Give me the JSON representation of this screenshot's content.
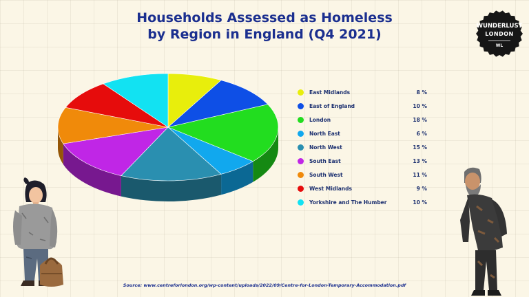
{
  "title_lines": [
    "Households Assessed as Homeless",
    "by Region in England (Q4 2021)"
  ],
  "logo": {
    "line1": "WUNDERLUST",
    "line2": "LONDON",
    "line3": "WL"
  },
  "source": "Source: www.centreforlondon.org/wp-content/uploads/2022/09/Centre-for-London-Temporary-Accommodation.pdf",
  "chart_data": {
    "type": "pie",
    "title": "Households Assessed as Homeless by Region in England (Q4 2021)",
    "unit": "%",
    "legend_position": "right",
    "labels": [
      "East Midlands",
      "East of England",
      "London",
      "North East",
      "North West",
      "South East",
      "South West",
      "West Midlands",
      "Yorkshire and The Humber"
    ],
    "values": [
      8,
      10,
      18,
      6,
      15,
      13,
      11,
      9,
      10
    ],
    "value_labels": [
      "8 %",
      "10 %",
      "18 %",
      "6 %",
      "15 %",
      "13 %",
      "11 %",
      "9 %",
      "10 %"
    ],
    "colors": [
      "#e8ee0c",
      "#0e4fe6",
      "#22dd1f",
      "#11a8ee",
      "#2a8fb0",
      "#c026e6",
      "#f08a0a",
      "#e60c0c",
      "#12e2f2"
    ]
  }
}
